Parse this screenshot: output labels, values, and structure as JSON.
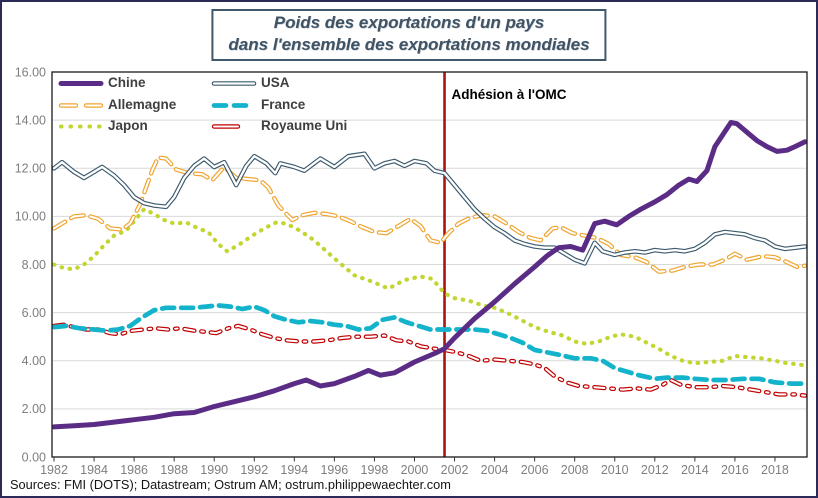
{
  "page": {
    "border_color": "#2c2a56",
    "background": "#ffffff",
    "plot_border_color": "#1a1a1a",
    "gridline_color": "#d9d9d9",
    "tick_label_color": "#7f7f7f"
  },
  "title": {
    "line1": "Poids des exportations d'un pays",
    "line2": "dans l'ensemble des exportations mondiales"
  },
  "source": {
    "text": "Sources: FMI (DOTS); Datastream; Ostrum AM; ostrum.philippewaechter.com"
  },
  "chart_data": {
    "type": "line",
    "title": "Poids des exportations d'un pays dans l'ensemble des exportations mondiales",
    "xlabel": "",
    "ylabel": "",
    "ylim": [
      0,
      16
    ],
    "yticks": [
      0,
      2,
      4,
      6,
      8,
      10,
      12,
      14,
      16
    ],
    "xticks": [
      1982,
      1984,
      1986,
      1988,
      1990,
      1992,
      1994,
      1996,
      1998,
      2000,
      2002,
      2004,
      2006,
      2008,
      2010,
      2012,
      2014,
      2016,
      2018
    ],
    "x_range": [
      1982,
      2019.6
    ],
    "grid": true,
    "legend_position": "top-left",
    "annotation": {
      "label": "Adhésion à l'OMC",
      "x": 2001.5,
      "line_color": "#ac1414"
    },
    "series": [
      {
        "name": "Chine",
        "color": "#5b2c86",
        "style": "solid",
        "x": [
          1982,
          1983,
          1984,
          1985,
          1986,
          1987,
          1988,
          1989,
          1990,
          1991,
          1992,
          1993,
          1994,
          1994.6,
          1995.3,
          1996,
          1997,
          1997.7,
          1998.3,
          1999,
          2000,
          2001,
          2001.5,
          2002,
          2003,
          2004,
          2005,
          2006,
          2006.6,
          2007.2,
          2007.8,
          2008.4,
          2009,
          2009.5,
          2010.1,
          2010.7,
          2011.3,
          2012,
          2012.6,
          2013.2,
          2013.7,
          2014.1,
          2014.6,
          2015,
          2015.8,
          2016.1,
          2016.6,
          2017.1,
          2017.6,
          2018.1,
          2018.6,
          2019,
          2019.5
        ],
        "values": [
          1.25,
          1.3,
          1.35,
          1.45,
          1.55,
          1.65,
          1.8,
          1.85,
          2.1,
          2.3,
          2.5,
          2.75,
          3.05,
          3.2,
          2.95,
          3.05,
          3.35,
          3.6,
          3.4,
          3.5,
          3.95,
          4.3,
          4.5,
          4.95,
          5.75,
          6.45,
          7.2,
          7.9,
          8.35,
          8.7,
          8.75,
          8.6,
          9.7,
          9.8,
          9.65,
          10.0,
          10.3,
          10.6,
          10.9,
          11.3,
          11.55,
          11.45,
          11.9,
          12.9,
          13.9,
          13.85,
          13.5,
          13.15,
          12.9,
          12.7,
          12.75,
          12.9,
          13.1
        ]
      },
      {
        "name": "USA",
        "color": "#3b5a6d",
        "style": "outline",
        "x": [
          1982,
          1982.4,
          1983,
          1983.5,
          1984,
          1984.4,
          1985,
          1985.5,
          1986,
          1986.5,
          1987,
          1987.6,
          1988,
          1988.5,
          1989,
          1989.5,
          1990,
          1990.5,
          1991.1,
          1991.6,
          1992,
          1992.6,
          1993.05,
          1993.3,
          1994,
          1994.5,
          1995.3,
          1996,
          1996.7,
          1997.5,
          1998,
          1998.5,
          1999,
          1999.5,
          2000,
          2000.6,
          2001,
          2001.5,
          2002,
          2002.5,
          2003,
          2003.5,
          2004,
          2004.5,
          2005,
          2005.5,
          2006,
          2006.5,
          2007,
          2007.5,
          2008,
          2008.5,
          2009,
          2009.4,
          2010,
          2010.5,
          2011,
          2011.5,
          2012,
          2012.5,
          2013,
          2013.5,
          2014,
          2014.5,
          2015,
          2015.5,
          2016,
          2016.5,
          2017,
          2017.5,
          2018,
          2018.5,
          2019,
          2019.5
        ],
        "values": [
          12.0,
          12.25,
          11.85,
          11.6,
          11.85,
          12.05,
          11.7,
          11.3,
          10.8,
          10.55,
          10.45,
          10.4,
          10.8,
          11.6,
          12.1,
          12.4,
          12.05,
          12.25,
          11.3,
          12.1,
          12.5,
          12.2,
          11.8,
          12.2,
          12.05,
          11.9,
          12.4,
          12.05,
          12.5,
          12.6,
          12.0,
          12.2,
          12.3,
          12.1,
          12.3,
          12.2,
          11.9,
          11.8,
          11.3,
          10.8,
          10.3,
          9.9,
          9.55,
          9.3,
          9.0,
          8.85,
          8.75,
          8.7,
          8.7,
          8.45,
          8.2,
          8.05,
          8.9,
          8.55,
          8.4,
          8.5,
          8.55,
          8.5,
          8.6,
          8.55,
          8.6,
          8.55,
          8.65,
          8.9,
          9.25,
          9.35,
          9.3,
          9.25,
          9.1,
          9.0,
          8.75,
          8.65,
          8.7,
          8.75
        ]
      },
      {
        "name": "Allemagne",
        "color": "#f0a42f",
        "style": "outline-dash",
        "x": [
          1982,
          1982.5,
          1983,
          1983.6,
          1984.2,
          1984.8,
          1985.4,
          1985.8,
          1986.3,
          1986.9,
          1987.2,
          1987.6,
          1988.1,
          1988.7,
          1989.4,
          1989.9,
          1990.5,
          1991.1,
          1991.7,
          1992.3,
          1992.7,
          1993.2,
          1993.9,
          1994.4,
          1995,
          1995.6,
          1996.2,
          1996.8,
          1997.4,
          1998,
          1998.6,
          1999.2,
          1999.8,
          2000.3,
          2000.8,
          2001.3,
          2001.7,
          2002.2,
          2002.8,
          2003.4,
          2004,
          2004.6,
          2005.2,
          2005.8,
          2006.3,
          2006.9,
          2007.3,
          2007.9,
          2008.5,
          2009.1,
          2009.7,
          2010.3,
          2011,
          2011.6,
          2012.2,
          2012.9,
          2013.5,
          2014.2,
          2014.9,
          2015.5,
          2016,
          2016.6,
          2017.4,
          2018,
          2018.6,
          2019.1,
          2019.5
        ],
        "values": [
          9.5,
          9.75,
          10.0,
          10.05,
          9.9,
          9.5,
          9.45,
          9.7,
          10.5,
          11.9,
          12.45,
          12.4,
          11.95,
          11.8,
          11.75,
          11.5,
          12.05,
          11.6,
          11.55,
          11.5,
          11.2,
          10.45,
          9.85,
          10.05,
          10.15,
          10.1,
          10.0,
          9.8,
          9.55,
          9.35,
          9.3,
          9.6,
          9.9,
          9.6,
          9.0,
          8.9,
          9.3,
          9.7,
          9.95,
          10.05,
          10.0,
          9.7,
          9.35,
          9.1,
          9.0,
          9.5,
          9.55,
          9.3,
          9.2,
          9.1,
          8.85,
          8.4,
          8.3,
          8.1,
          7.7,
          7.75,
          7.9,
          8.0,
          8.0,
          8.2,
          8.45,
          8.2,
          8.35,
          8.3,
          8.1,
          7.9,
          7.95
        ]
      },
      {
        "name": "France",
        "color": "#13b3cb",
        "style": "dash",
        "x": [
          1982,
          1982.6,
          1983.3,
          1984,
          1984.6,
          1985.2,
          1985.8,
          1986.4,
          1987,
          1987.6,
          1988.3,
          1989,
          1989.6,
          1990.2,
          1990.8,
          1991.4,
          1992,
          1992.5,
          1993,
          1993.6,
          1994.2,
          1994.8,
          1995.4,
          1996,
          1996.6,
          1997.2,
          1997.8,
          1998.4,
          1999,
          1999.6,
          2000.2,
          2000.8,
          2001.5,
          2002.2,
          2003,
          2003.6,
          2004.2,
          2004.8,
          2005.4,
          2006,
          2006.6,
          2007.2,
          2008,
          2008.8,
          2009.4,
          2010,
          2010.6,
          2011.2,
          2012,
          2012.6,
          2013.4,
          2014,
          2014.8,
          2015.6,
          2016.4,
          2017.2,
          2018,
          2018.8,
          2019.5
        ],
        "values": [
          5.4,
          5.45,
          5.35,
          5.3,
          5.25,
          5.3,
          5.45,
          5.8,
          6.1,
          6.2,
          6.2,
          6.2,
          6.25,
          6.3,
          6.25,
          6.15,
          6.25,
          6.1,
          5.85,
          5.7,
          5.6,
          5.65,
          5.6,
          5.5,
          5.45,
          5.3,
          5.35,
          5.7,
          5.8,
          5.6,
          5.45,
          5.3,
          5.3,
          5.3,
          5.3,
          5.25,
          5.1,
          4.95,
          4.75,
          4.45,
          4.35,
          4.25,
          4.1,
          4.1,
          4.0,
          3.7,
          3.55,
          3.4,
          3.25,
          3.3,
          3.3,
          3.25,
          3.2,
          3.2,
          3.25,
          3.25,
          3.1,
          3.05,
          3.05
        ]
      },
      {
        "name": "Japon",
        "color": "#c3d530",
        "style": "dots",
        "x": [
          1982,
          1982.5,
          1983,
          1983.5,
          1984,
          1984.5,
          1985,
          1985.6,
          1986.1,
          1986.5,
          1987,
          1987.5,
          1988,
          1988.6,
          1989.2,
          1989.7,
          1990.2,
          1990.65,
          1991.2,
          1991.9,
          1992.5,
          1993.1,
          1993.6,
          1994.3,
          1995,
          1996,
          1997,
          1998,
          1998.7,
          1999.5,
          2000.3,
          2000.9,
          2001.5,
          2002,
          2002.7,
          2003.4,
          2004,
          2004.6,
          2005.2,
          2006,
          2006.7,
          2007.4,
          2008,
          2008.6,
          2009.2,
          2009.8,
          2010.3,
          2011,
          2011.6,
          2012.2,
          2012.8,
          2013.4,
          2014,
          2014.7,
          2015.4,
          2016,
          2016.6,
          2017.3,
          2018,
          2018.6,
          2019.2,
          2019.5
        ],
        "values": [
          8.0,
          7.85,
          7.8,
          8.0,
          8.35,
          8.8,
          9.2,
          9.4,
          9.9,
          10.3,
          10.1,
          9.85,
          9.7,
          9.75,
          9.5,
          9.35,
          8.85,
          8.55,
          8.8,
          9.2,
          9.5,
          9.75,
          9.7,
          9.4,
          9.0,
          8.25,
          7.55,
          7.25,
          7.0,
          7.35,
          7.5,
          7.4,
          6.8,
          6.6,
          6.5,
          6.3,
          6.2,
          6.0,
          5.75,
          5.4,
          5.2,
          5.05,
          4.8,
          4.7,
          4.8,
          5.0,
          5.1,
          5.0,
          4.75,
          4.5,
          4.2,
          4.0,
          3.9,
          3.95,
          4.0,
          4.2,
          4.15,
          4.1,
          4.0,
          3.9,
          3.85,
          3.8
        ]
      },
      {
        "name": "Royaume Uni",
        "color": "#c00000",
        "style": "outline-dashdot",
        "x": [
          1982,
          1982.5,
          1983,
          1983.6,
          1984.2,
          1984.8,
          1985.3,
          1985.9,
          1986.5,
          1987.1,
          1987.7,
          1988.3,
          1989,
          1989.6,
          1990.1,
          1990.7,
          1991.2,
          1991.8,
          1992.4,
          1993,
          1993.6,
          1994.3,
          1995,
          1995.7,
          1996.4,
          1997.1,
          1997.8,
          1998.5,
          1999.1,
          1999.7,
          2000.3,
          2001,
          2001.5,
          2002.1,
          2002.7,
          2003.3,
          2004,
          2004.7,
          2005.4,
          2006,
          2006.5,
          2007,
          2007.6,
          2008.2,
          2009,
          2009.7,
          2010.4,
          2011.1,
          2011.8,
          2012.4,
          2012.8,
          2013.3,
          2014,
          2014.7,
          2015.4,
          2016.1,
          2016.8,
          2017.5,
          2018.2,
          2019,
          2019.5
        ],
        "values": [
          5.45,
          5.5,
          5.4,
          5.3,
          5.3,
          5.15,
          5.1,
          5.25,
          5.3,
          5.35,
          5.3,
          5.35,
          5.25,
          5.2,
          5.15,
          5.35,
          5.45,
          5.3,
          5.1,
          4.95,
          4.85,
          4.8,
          4.8,
          4.85,
          4.95,
          5.0,
          5.0,
          5.05,
          4.85,
          4.8,
          4.6,
          4.5,
          4.45,
          4.35,
          4.2,
          4.0,
          4.05,
          4.0,
          3.95,
          3.85,
          3.7,
          3.35,
          3.1,
          2.95,
          2.9,
          2.85,
          2.8,
          2.85,
          2.8,
          3.0,
          3.2,
          3.0,
          2.9,
          2.9,
          2.95,
          2.9,
          2.8,
          2.7,
          2.6,
          2.6,
          2.55
        ]
      }
    ]
  }
}
